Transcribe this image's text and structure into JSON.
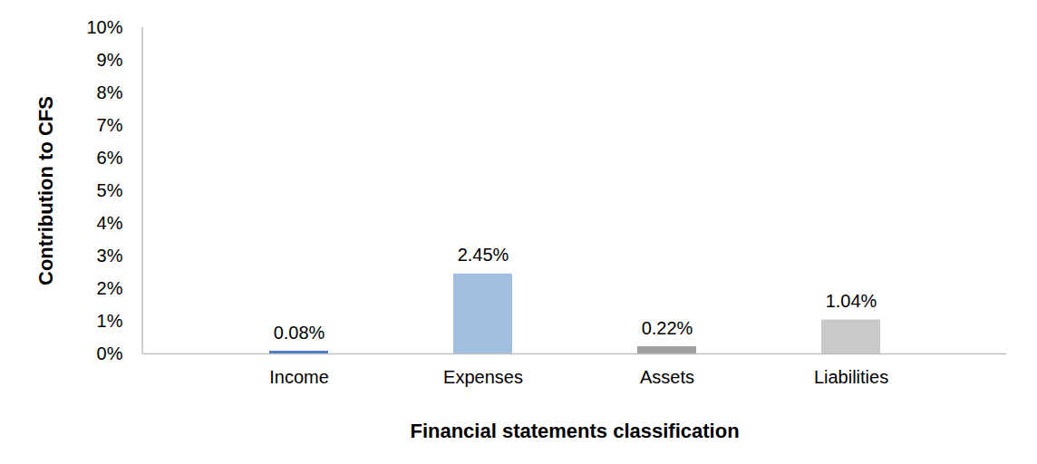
{
  "chart_data": {
    "type": "bar",
    "categories": [
      "Income",
      "Expenses",
      "Assets",
      "Liabilities"
    ],
    "values": [
      0.08,
      2.45,
      0.22,
      1.04
    ],
    "value_labels": [
      "0.08%",
      "2.45%",
      "0.22%",
      "1.04%"
    ],
    "colors": [
      "#4472c4",
      "#a3bfe0",
      "#a0a0a0",
      "#c9c9c9"
    ],
    "data_labels": true,
    "grid": false,
    "xlabel": "Financial statements classification",
    "ylabel": "Contribution to CFS",
    "ylim": [
      0,
      10
    ],
    "yticks": [
      {
        "value": 0,
        "label": "0%"
      },
      {
        "value": 1,
        "label": "1%"
      },
      {
        "value": 2,
        "label": "2%"
      },
      {
        "value": 3,
        "label": "3%"
      },
      {
        "value": 4,
        "label": "4%"
      },
      {
        "value": 5,
        "label": "5%"
      },
      {
        "value": 6,
        "label": "6%"
      },
      {
        "value": 7,
        "label": "7%"
      },
      {
        "value": 8,
        "label": "8%"
      },
      {
        "value": 9,
        "label": "9%"
      },
      {
        "value": 10,
        "label": "10%"
      }
    ]
  }
}
